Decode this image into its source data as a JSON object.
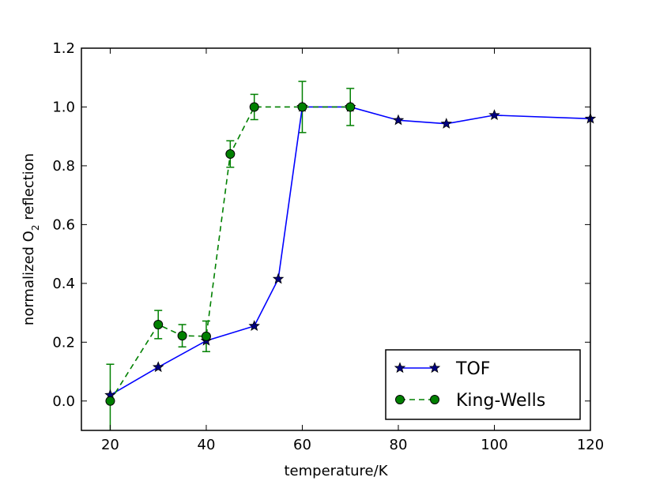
{
  "chart_data": {
    "type": "line",
    "title": "",
    "xlabel": "temperature/K",
    "ylabel_parts": {
      "before": "normalized O",
      "subscript": "2",
      "after": " reflection"
    },
    "xlim": [
      14,
      120
    ],
    "ylim": [
      -0.1,
      1.2
    ],
    "xticks": [
      20,
      40,
      60,
      80,
      100,
      120
    ],
    "yticks": [
      0.0,
      0.2,
      0.4,
      0.6,
      0.8,
      1.0,
      1.2
    ],
    "xtick_labels": [
      "20",
      "40",
      "60",
      "80",
      "100",
      "120"
    ],
    "ytick_labels": [
      "0.0",
      "0.2",
      "0.4",
      "0.6",
      "0.8",
      "1.0",
      "1.2"
    ],
    "grid": false,
    "legend_position": "bottom-right",
    "series": [
      {
        "name": "TOF",
        "color": "#0000ff",
        "marker": "star",
        "linestyle": "solid",
        "x": [
          20,
          30,
          40,
          50,
          55,
          60,
          70,
          80,
          90,
          100,
          120
        ],
        "y": [
          0.02,
          0.115,
          0.205,
          0.255,
          0.415,
          1.0,
          1.0,
          0.955,
          0.943,
          0.972,
          0.96
        ]
      },
      {
        "name": "King-Wells",
        "color": "#008000",
        "marker": "circle",
        "linestyle": "dashed",
        "x": [
          20,
          30,
          35,
          40,
          45,
          50,
          60,
          70
        ],
        "y": [
          0.0,
          0.26,
          0.222,
          0.22,
          0.84,
          1.0,
          1.0,
          1.0
        ],
        "yerr": [
          0.125,
          0.048,
          0.038,
          0.052,
          0.045,
          0.043,
          0.087,
          0.063
        ]
      }
    ]
  }
}
